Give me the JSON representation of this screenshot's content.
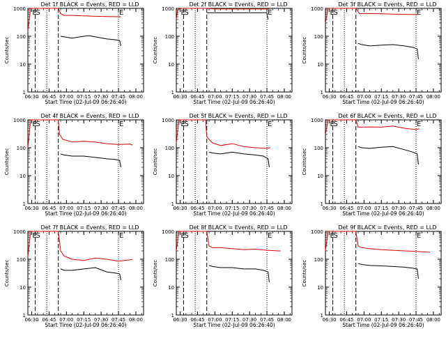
{
  "chart_data": [
    {
      "type": "line",
      "title": "Det 1f BLACK = Events, RED = LLD",
      "xlabel": "Start Time (02-Jul-09 06:26:40)",
      "ylabel": "Counts/sec",
      "yscale": "log",
      "ylim": [
        1,
        1000
      ],
      "xlim": [
        "06:26:40",
        "08:06:40"
      ],
      "x_ticks": [
        "06:30",
        "06:45",
        "07:00",
        "07:15",
        "07:30",
        "07:45",
        "08:00"
      ],
      "y_ticks": [
        "1",
        "10",
        "100",
        "1000"
      ],
      "markers": [
        {
          "label": "E",
          "x": "06:30"
        },
        {
          "label": "S",
          "x": "06:33"
        },
        {
          "label": "E",
          "x": "07:45"
        }
      ],
      "dashed_lines": [
        "06:33",
        "06:53"
      ],
      "dotted_lines": [
        "06:43",
        "07:45"
      ],
      "series": [
        {
          "name": "LLD",
          "color": "#e00000",
          "x": [
            "06:26:40",
            "06:29",
            "06:32",
            "06:34",
            "06:53",
            "06:55",
            "06:58",
            "07:05",
            "07:15",
            "07:25",
            "07:35",
            "07:47"
          ],
          "values": [
            150,
            1000,
            1000,
            1000,
            1000,
            650,
            560,
            560,
            540,
            520,
            510,
            500
          ]
        },
        {
          "name": "Events",
          "color": "#000000",
          "x": [
            "06:55",
            "06:58",
            "07:05",
            "07:15",
            "07:20",
            "07:25",
            "07:35",
            "07:42",
            "07:46",
            "07:47"
          ],
          "values": [
            100,
            95,
            85,
            100,
            105,
            95,
            80,
            75,
            70,
            45
          ]
        }
      ]
    },
    {
      "type": "line",
      "title": "Det 2f BLACK = Events, RED = LLD",
      "xlabel": "Start Time (02-Jul-09 06:26:40)",
      "ylabel": "Counts/sec",
      "yscale": "log",
      "ylim": [
        1,
        1000
      ],
      "xlim": [
        "06:26:40",
        "08:06:40"
      ],
      "x_ticks": [
        "06:30",
        "06:45",
        "07:00",
        "07:15",
        "07:30",
        "07:45",
        "08:00"
      ],
      "y_ticks": [
        "1",
        "10",
        "100",
        "1000"
      ],
      "markers": [
        {
          "label": "E",
          "x": "06:30"
        },
        {
          "label": "S",
          "x": "06:33"
        },
        {
          "label": "E",
          "x": "07:45"
        }
      ],
      "dashed_lines": [
        "06:33",
        "06:53"
      ],
      "dotted_lines": [
        "06:43",
        "07:45"
      ],
      "series": [
        {
          "name": "LLD",
          "color": "#e00000",
          "x": [
            "06:26:40",
            "06:28",
            "06:31",
            "06:34",
            "06:38",
            "06:43",
            "06:48",
            "06:53",
            "07:00",
            "07:15",
            "07:30",
            "07:47"
          ],
          "values": [
            400,
            900,
            1000,
            1000,
            1000,
            1000,
            1000,
            1000,
            950,
            950,
            950,
            950
          ]
        },
        {
          "name": "Events",
          "color": "#000000",
          "x": [
            "06:53",
            "06:58",
            "07:10",
            "07:25",
            "07:40",
            "07:45",
            "07:46"
          ],
          "values": [
            700,
            700,
            700,
            700,
            700,
            700,
            400
          ]
        }
      ]
    },
    {
      "type": "line",
      "title": "Det 3f BLACK = Events, RED = LLD",
      "xlabel": "Start Time (02-Jul-09 06:26:40)",
      "ylabel": "Counts/sec",
      "yscale": "log",
      "ylim": [
        1,
        1000
      ],
      "xlim": [
        "06:26:40",
        "08:06:40"
      ],
      "x_ticks": [
        "06:30",
        "06:45",
        "07:00",
        "07:15",
        "07:30",
        "07:45",
        "08:00"
      ],
      "y_ticks": [
        "1",
        "10",
        "100",
        "1000"
      ],
      "markers": [
        {
          "label": "E",
          "x": "06:30"
        },
        {
          "label": "S",
          "x": "06:33"
        },
        {
          "label": "E",
          "x": "07:45"
        }
      ],
      "dashed_lines": [
        "06:33",
        "06:53"
      ],
      "dotted_lines": [
        "06:43",
        "07:45"
      ],
      "series": [
        {
          "name": "LLD",
          "color": "#e00000",
          "x": [
            "06:26:40",
            "06:29",
            "06:32",
            "06:53",
            "06:56",
            "07:05",
            "07:15",
            "07:25",
            "07:35",
            "07:47"
          ],
          "values": [
            300,
            1000,
            1000,
            1000,
            650,
            650,
            640,
            620,
            610,
            600
          ]
        },
        {
          "name": "Events",
          "color": "#000000",
          "x": [
            "06:55",
            "06:58",
            "07:05",
            "07:15",
            "07:25",
            "07:35",
            "07:42",
            "07:46",
            "07:47"
          ],
          "values": [
            55,
            50,
            45,
            48,
            50,
            45,
            40,
            35,
            15
          ]
        }
      ]
    },
    {
      "type": "line",
      "title": "Det 4f BLACK = Events, RED = LLD",
      "xlabel": "Start Time (02-Jul-09 06:26:40)",
      "ylabel": "Counts/sec",
      "yscale": "log",
      "ylim": [
        1,
        1000
      ],
      "xlim": [
        "06:26:40",
        "08:06:40"
      ],
      "x_ticks": [
        "06:30",
        "06:45",
        "07:00",
        "07:15",
        "07:30",
        "07:45",
        "08:00"
      ],
      "y_ticks": [
        "1",
        "10",
        "100",
        "1000"
      ],
      "markers": [
        {
          "label": "E",
          "x": "06:30"
        },
        {
          "label": "S",
          "x": "06:33"
        },
        {
          "label": "E",
          "x": "07:45"
        }
      ],
      "dashed_lines": [
        "06:33",
        "06:53"
      ],
      "dotted_lines": [
        "06:43",
        "07:45"
      ],
      "series": [
        {
          "name": "LLD",
          "color": "#e00000",
          "x": [
            "06:26:40",
            "06:29",
            "06:32",
            "06:53",
            "06:54",
            "06:57",
            "07:05",
            "07:15",
            "07:25",
            "07:35",
            "07:45",
            "07:55",
            "07:57"
          ],
          "values": [
            100,
            1000,
            1000,
            1000,
            300,
            200,
            160,
            170,
            160,
            140,
            130,
            135,
            125
          ]
        },
        {
          "name": "Events",
          "color": "#000000",
          "x": [
            "06:55",
            "06:58",
            "07:05",
            "07:15",
            "07:25",
            "07:35",
            "07:42",
            "07:46",
            "07:47"
          ],
          "values": [
            60,
            55,
            50,
            50,
            45,
            40,
            38,
            35,
            20
          ]
        }
      ]
    },
    {
      "type": "line",
      "title": "Det 5f BLACK = Events, RED = LLD",
      "xlabel": "Start Time (02-Jul-09 06:26:40)",
      "ylabel": "Counts/sec",
      "yscale": "log",
      "ylim": [
        1,
        1000
      ],
      "xlim": [
        "06:26:40",
        "08:06:40"
      ],
      "x_ticks": [
        "06:30",
        "06:45",
        "07:00",
        "07:15",
        "07:30",
        "07:45",
        "08:00"
      ],
      "y_ticks": [
        "1",
        "10",
        "100",
        "1000"
      ],
      "markers": [
        {
          "label": "E",
          "x": "06:30"
        },
        {
          "label": "S",
          "x": "06:33"
        },
        {
          "label": "E",
          "x": "07:45"
        }
      ],
      "dashed_lines": [
        "06:33",
        "06:53"
      ],
      "dotted_lines": [
        "06:43",
        "07:45"
      ],
      "series": [
        {
          "name": "LLD",
          "color": "#e00000",
          "x": [
            "06:26:40",
            "06:29",
            "06:32",
            "06:44",
            "06:52",
            "06:53",
            "06:55",
            "06:58",
            "07:05",
            "07:15",
            "07:25",
            "07:35",
            "07:45",
            "07:48"
          ],
          "values": [
            150,
            1000,
            1000,
            1000,
            1000,
            250,
            200,
            150,
            120,
            140,
            110,
            100,
            95,
            100
          ]
        },
        {
          "name": "Events",
          "color": "#000000",
          "x": [
            "06:55",
            "06:58",
            "07:05",
            "07:15",
            "07:25",
            "07:35",
            "07:42",
            "07:46",
            "07:47"
          ],
          "values": [
            70,
            65,
            60,
            70,
            60,
            55,
            50,
            40,
            20
          ]
        }
      ]
    },
    {
      "type": "line",
      "title": "Det 6f BLACK = Events, RED = LLD",
      "xlabel": "Start Time (02-Jul-09 06:26:40)",
      "ylabel": "Counts/sec",
      "yscale": "log",
      "ylim": [
        1,
        1000
      ],
      "xlim": [
        "06:26:40",
        "08:06:40"
      ],
      "x_ticks": [
        "06:30",
        "06:45",
        "07:00",
        "07:15",
        "07:30",
        "07:45",
        "08:00"
      ],
      "y_ticks": [
        "1",
        "10",
        "100",
        "1000"
      ],
      "markers": [
        {
          "label": "E",
          "x": "06:30"
        },
        {
          "label": "S",
          "x": "06:33"
        },
        {
          "label": "E",
          "x": "07:45"
        }
      ],
      "dashed_lines": [
        "06:33",
        "06:53"
      ],
      "dotted_lines": [
        "06:43",
        "07:45"
      ],
      "series": [
        {
          "name": "LLD",
          "color": "#e00000",
          "x": [
            "06:26:40",
            "06:29",
            "06:32",
            "06:53",
            "06:55",
            "07:05",
            "07:15",
            "07:25",
            "07:35",
            "07:45",
            "07:48"
          ],
          "values": [
            300,
            1000,
            1000,
            1000,
            550,
            560,
            550,
            600,
            500,
            450,
            480
          ]
        },
        {
          "name": "Events",
          "color": "#000000",
          "x": [
            "06:55",
            "06:58",
            "07:05",
            "07:15",
            "07:25",
            "07:35",
            "07:42",
            "07:46",
            "07:47"
          ],
          "values": [
            110,
            100,
            95,
            105,
            110,
            85,
            70,
            60,
            25
          ]
        }
      ]
    },
    {
      "type": "line",
      "title": "Det 7f BLACK = Events, RED = LLD",
      "xlabel": "Start Time (02-Jul-09 06:26:40)",
      "ylabel": "Counts/sec",
      "yscale": "log",
      "ylim": [
        1,
        1000
      ],
      "xlim": [
        "06:26:40",
        "08:06:40"
      ],
      "x_ticks": [
        "06:30",
        "06:45",
        "07:00",
        "07:15",
        "07:30",
        "07:45",
        "08:00"
      ],
      "y_ticks": [
        "1",
        "10",
        "100",
        "1000"
      ],
      "markers": [
        {
          "label": "E",
          "x": "06:30"
        },
        {
          "label": "S",
          "x": "06:33"
        },
        {
          "label": "E",
          "x": "07:45"
        }
      ],
      "dashed_lines": [
        "06:33",
        "06:53"
      ],
      "dotted_lines": [
        "06:43",
        "07:45"
      ],
      "series": [
        {
          "name": "LLD",
          "color": "#e00000",
          "x": [
            "06:26:40",
            "06:29",
            "06:32",
            "06:53",
            "06:55",
            "06:58",
            "07:05",
            "07:15",
            "07:25",
            "07:35",
            "07:45",
            "07:55",
            "07:57"
          ],
          "values": [
            120,
            1000,
            1000,
            1000,
            200,
            130,
            100,
            90,
            110,
            100,
            85,
            95,
            100
          ]
        },
        {
          "name": "Events",
          "color": "#000000",
          "x": [
            "06:55",
            "06:58",
            "07:05",
            "07:15",
            "07:25",
            "07:35",
            "07:42",
            "07:46",
            "07:47"
          ],
          "values": [
            45,
            40,
            40,
            45,
            50,
            35,
            32,
            30,
            18
          ]
        }
      ]
    },
    {
      "type": "line",
      "title": "Det 8f BLACK = Events, RED = LLD",
      "xlabel": "Start Time (02-Jul-09 06:26:40)",
      "ylabel": "Counts/sec",
      "yscale": "log",
      "ylim": [
        1,
        1000
      ],
      "xlim": [
        "06:26:40",
        "08:06:40"
      ],
      "x_ticks": [
        "06:30",
        "06:45",
        "07:00",
        "07:15",
        "07:30",
        "07:45",
        "08:00"
      ],
      "y_ticks": [
        "1",
        "10",
        "100",
        "1000"
      ],
      "markers": [
        {
          "label": "E",
          "x": "06:30"
        },
        {
          "label": "S",
          "x": "06:33"
        },
        {
          "label": "E",
          "x": "07:45"
        }
      ],
      "dashed_lines": [
        "06:33",
        "06:53"
      ],
      "dotted_lines": [
        "06:43",
        "07:45"
      ],
      "series": [
        {
          "name": "LLD",
          "color": "#e00000",
          "x": [
            "06:26:40",
            "06:29",
            "06:32",
            "06:53",
            "06:55",
            "06:58",
            "07:05",
            "07:15",
            "07:25",
            "07:35",
            "07:45",
            "07:55",
            "07:57"
          ],
          "values": [
            200,
            1000,
            1000,
            1000,
            300,
            260,
            260,
            240,
            220,
            230,
            210,
            200,
            200
          ]
        },
        {
          "name": "Events",
          "color": "#000000",
          "x": [
            "06:55",
            "06:58",
            "07:05",
            "07:15",
            "07:25",
            "07:35",
            "07:42",
            "07:46",
            "07:47"
          ],
          "values": [
            60,
            55,
            50,
            50,
            45,
            45,
            40,
            35,
            15
          ]
        }
      ]
    },
    {
      "type": "line",
      "title": "Det 9f BLACK = Events, RED = LLD",
      "xlabel": "Start Time (02-Jul-09 06:26:40)",
      "ylabel": "Counts/sec",
      "yscale": "log",
      "ylim": [
        1,
        1000
      ],
      "xlim": [
        "06:26:40",
        "08:06:40"
      ],
      "x_ticks": [
        "06:30",
        "06:45",
        "07:00",
        "07:15",
        "07:30",
        "07:45",
        "08:00"
      ],
      "y_ticks": [
        "1",
        "10",
        "100",
        "1000"
      ],
      "markers": [
        {
          "label": "E",
          "x": "06:30"
        },
        {
          "label": "S",
          "x": "06:33"
        },
        {
          "label": "E",
          "x": "07:45"
        }
      ],
      "dashed_lines": [
        "06:33",
        "06:53"
      ],
      "dotted_lines": [
        "06:43",
        "07:45"
      ],
      "series": [
        {
          "name": "LLD",
          "color": "#e00000",
          "x": [
            "06:26:40",
            "06:29",
            "06:32",
            "06:53",
            "06:55",
            "06:58",
            "07:05",
            "07:15",
            "07:25",
            "07:35",
            "07:45",
            "07:55",
            "07:57"
          ],
          "values": [
            200,
            1000,
            1000,
            1000,
            300,
            260,
            240,
            220,
            210,
            200,
            190,
            180,
            180
          ]
        },
        {
          "name": "Events",
          "color": "#000000",
          "x": [
            "06:55",
            "06:58",
            "07:05",
            "07:15",
            "07:25",
            "07:35",
            "07:42",
            "07:46",
            "07:47"
          ],
          "values": [
            70,
            65,
            60,
            58,
            55,
            52,
            48,
            45,
            20
          ]
        }
      ]
    }
  ]
}
